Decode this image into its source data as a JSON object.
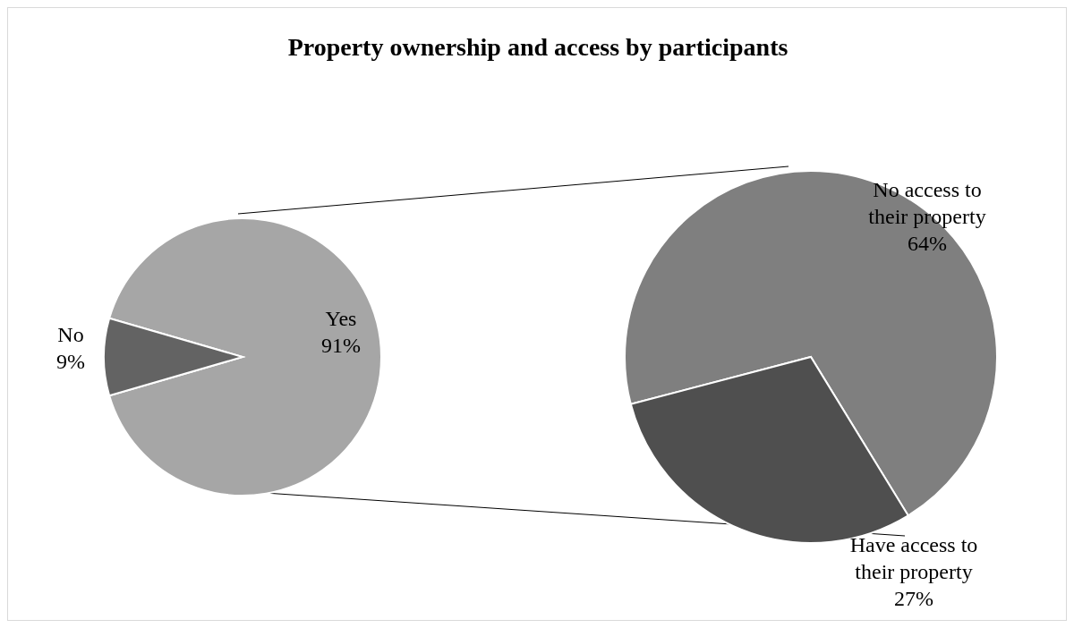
{
  "chart_data": [
    {
      "type": "pie",
      "title": "Property ownership and access by participants",
      "categories": [
        "Yes",
        "No"
      ],
      "values": [
        91,
        9
      ],
      "colors": [
        "#a6a6a6",
        "#636363"
      ],
      "value_labels": [
        "91%",
        "9%"
      ]
    },
    {
      "type": "pie",
      "categories": [
        "No access to their property",
        "Have access to their property"
      ],
      "values": [
        64,
        27
      ],
      "colors": [
        "#7f7f7f",
        "#4f4f4f"
      ],
      "value_labels": [
        "64%",
        "27%"
      ]
    }
  ]
}
